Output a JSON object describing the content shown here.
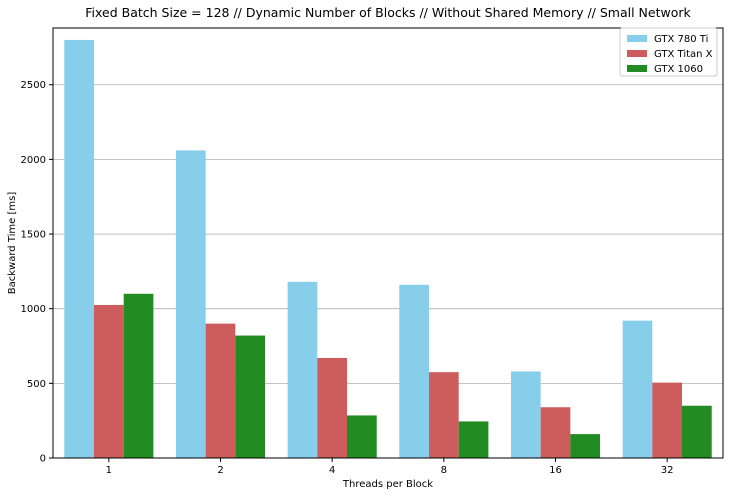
{
  "chart_data": {
    "type": "bar",
    "title": "Fixed Batch Size = 128 // Dynamic Number of Blocks // Without Shared Memory // Small Network",
    "xlabel": "Threads per Block",
    "ylabel": "Backward Time [ms]",
    "categories": [
      "1",
      "2",
      "4",
      "8",
      "16",
      "32"
    ],
    "ylim": [
      0,
      2880
    ],
    "yticks": [
      0,
      500,
      1000,
      1500,
      2000,
      2500
    ],
    "grid": "y",
    "legend_position": "top-right",
    "series": [
      {
        "name": "GTX 780 Ti",
        "color": "#87ceeb",
        "values": [
          2800,
          2060,
          1180,
          1160,
          580,
          920
        ]
      },
      {
        "name": "GTX Titan X",
        "color": "#cd5c5c",
        "values": [
          1025,
          900,
          670,
          575,
          340,
          505
        ]
      },
      {
        "name": "GTX 1060",
        "color": "#228b22",
        "values": [
          1100,
          820,
          285,
          245,
          160,
          350
        ]
      }
    ]
  }
}
